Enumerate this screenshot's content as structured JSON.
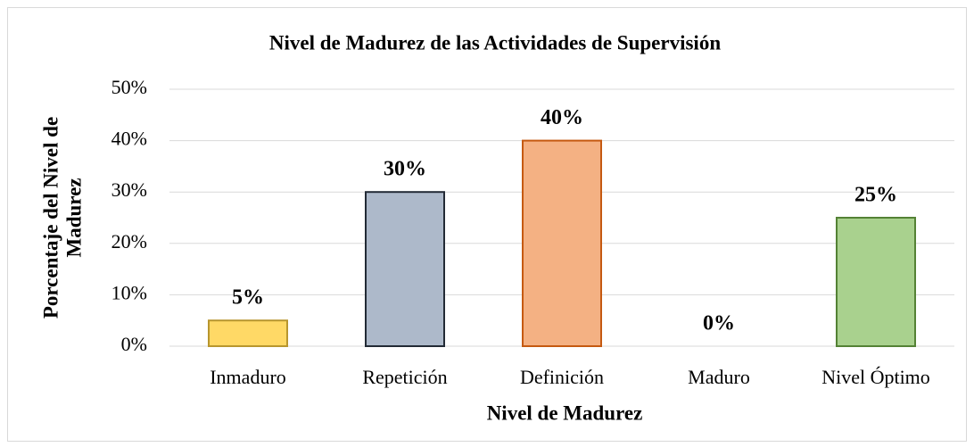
{
  "chart_data": {
    "type": "bar",
    "title": "Nivel de Madurez de las Actividades de Supervisión",
    "x_label": "Nivel de Madurez",
    "y_label": [
      "Porcentaje del Nivel de",
      "Madurez"
    ],
    "categories": [
      "Inmaduro",
      "Repetición",
      "Definición",
      "Maduro",
      "Nivel Óptimo"
    ],
    "values": [
      5,
      30,
      40,
      0,
      25
    ],
    "value_labels": [
      "5%",
      "30%",
      "40%",
      "0%",
      "25%"
    ],
    "colors": [
      "#FFD966",
      "#ADB9CA",
      "#F4B183",
      "#8FAADC",
      "#A9D18E"
    ],
    "edge_colors": [
      "#B8962E",
      "#222A35",
      "#C55A11",
      "#2F5597",
      "#548235"
    ],
    "ylim": [
      0,
      50
    ],
    "yticks": [
      {
        "value": 0,
        "label": "0%"
      },
      {
        "value": 10,
        "label": "10%"
      },
      {
        "value": 20,
        "label": "20%"
      },
      {
        "value": 30,
        "label": "30%"
      },
      {
        "value": 40,
        "label": "40%"
      },
      {
        "value": 50,
        "label": "50%"
      }
    ],
    "grid": true
  }
}
